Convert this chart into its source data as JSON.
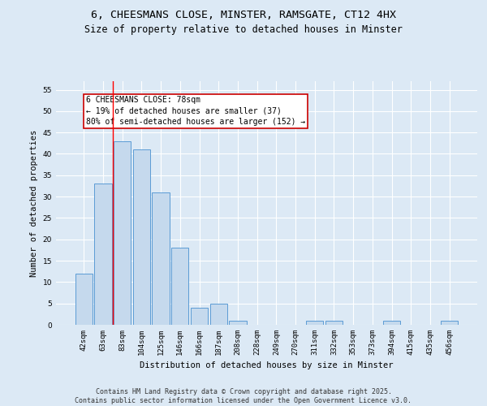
{
  "title_line1": "6, CHEESMANS CLOSE, MINSTER, RAMSGATE, CT12 4HX",
  "title_line2": "Size of property relative to detached houses in Minster",
  "xlabel": "Distribution of detached houses by size in Minster",
  "ylabel": "Number of detached properties",
  "categories": [
    "42sqm",
    "63sqm",
    "83sqm",
    "104sqm",
    "125sqm",
    "146sqm",
    "166sqm",
    "187sqm",
    "208sqm",
    "228sqm",
    "249sqm",
    "270sqm",
    "311sqm",
    "332sqm",
    "353sqm",
    "373sqm",
    "394sqm",
    "415sqm",
    "435sqm",
    "456sqm"
  ],
  "values": [
    12,
    33,
    43,
    41,
    31,
    18,
    4,
    5,
    1,
    0,
    0,
    0,
    1,
    1,
    0,
    0,
    1,
    0,
    0,
    1
  ],
  "bar_color": "#c5d9ed",
  "bar_edge_color": "#5b9bd5",
  "red_line_x": 1.5,
  "annotation_text": "6 CHEESMANS CLOSE: 78sqm\n← 19% of detached houses are smaller (37)\n80% of semi-detached houses are larger (152) →",
  "annotation_box_color": "#ffffff",
  "annotation_box_edge_color": "#cc0000",
  "ylim": [
    0,
    57
  ],
  "yticks": [
    0,
    5,
    10,
    15,
    20,
    25,
    30,
    35,
    40,
    45,
    50,
    55
  ],
  "background_color": "#dce9f5",
  "plot_bg_color": "#dce9f5",
  "grid_color": "#ffffff",
  "footer_text": "Contains HM Land Registry data © Crown copyright and database right 2025.\nContains public sector information licensed under the Open Government Licence v3.0.",
  "title_fontsize": 9.5,
  "subtitle_fontsize": 8.5,
  "axis_label_fontsize": 7.5,
  "tick_fontsize": 6.5,
  "footer_fontsize": 6.0,
  "annotation_fontsize": 7.0
}
